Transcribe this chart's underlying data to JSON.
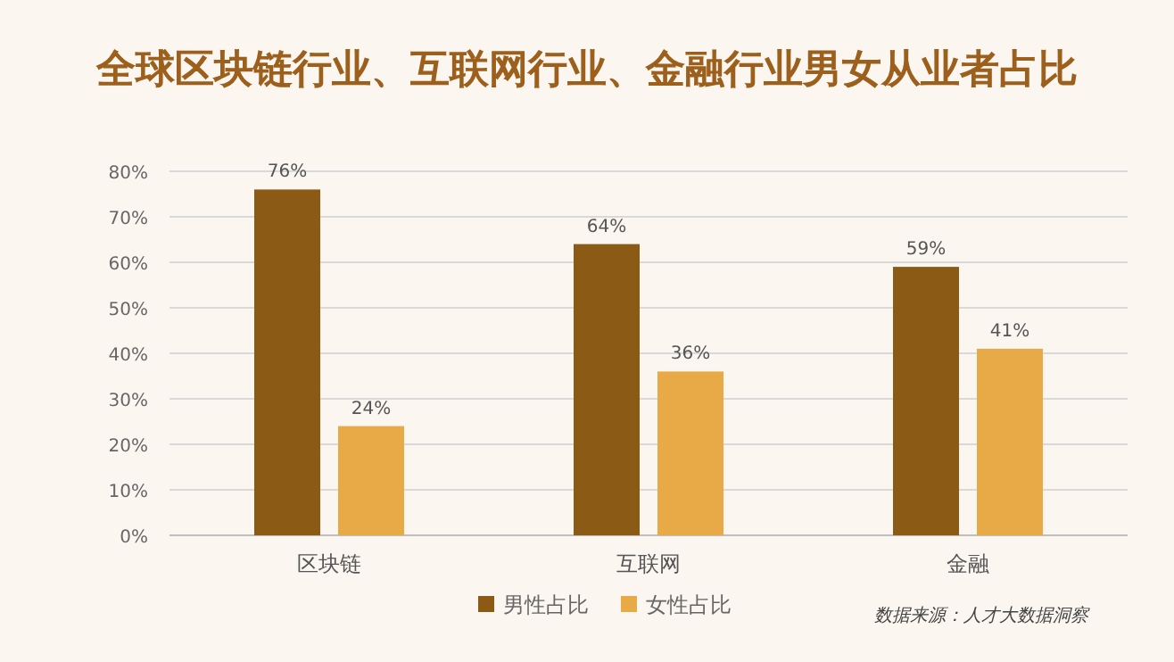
{
  "chart_data": {
    "type": "bar",
    "title": "全球区块链行业、互联网行业、金融行业男女从业者占比",
    "categories": [
      "区块链",
      "互联网",
      "金融"
    ],
    "series": [
      {
        "name": "男性占比",
        "color": "#8b5a14",
        "values": [
          76,
          64,
          59
        ],
        "value_labels": [
          "76%",
          "64%",
          "59%"
        ]
      },
      {
        "name": "女性占比",
        "color": "#e8a947",
        "values": [
          24,
          36,
          41
        ],
        "value_labels": [
          "24%",
          "36%",
          "41%"
        ]
      }
    ],
    "ylim": [
      0,
      80
    ],
    "yticks": [
      {
        "value": 0,
        "label": "0%"
      },
      {
        "value": 10,
        "label": "10%"
      },
      {
        "value": 20,
        "label": "20%"
      },
      {
        "value": 30,
        "label": "30%"
      },
      {
        "value": 40,
        "label": "40%"
      },
      {
        "value": 50,
        "label": "50%"
      },
      {
        "value": 60,
        "label": "60%"
      },
      {
        "value": 70,
        "label": "70%"
      },
      {
        "value": 80,
        "label": "80%"
      }
    ],
    "grid": "y",
    "legend": "bottom",
    "annotations": [
      "数据来源：人才大数据洞察"
    ]
  }
}
